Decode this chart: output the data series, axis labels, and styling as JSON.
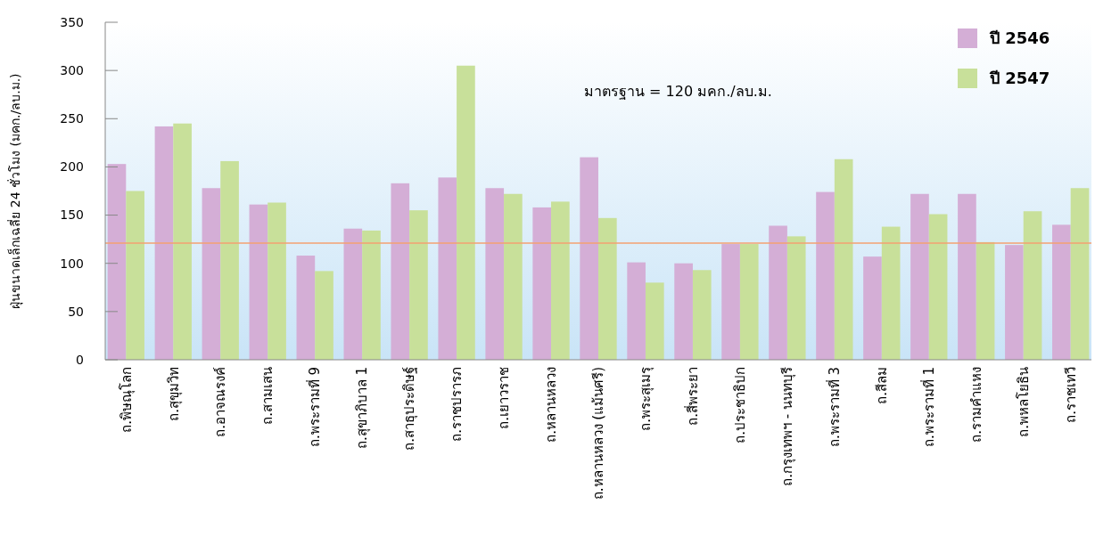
{
  "chart_data": {
    "type": "bar",
    "ylabel": "ฝุ่นขนาดเล็กเฉลี่ย 24 ชั่วโมง (มคก./ลบ.ม.)",
    "categories": [
      "ถ.พิษณุโลก",
      "ถ.สุขุมวิท",
      "ถ.อาจณรงค์",
      "ถ.สามเสน",
      "ถ.พระรามที่ 9",
      "ถ.สุขาภิบาล 1",
      "ถ.สาธุประดิษฐ์",
      "ถ.ราชปรารภ",
      "ถ.เยาวราช",
      "ถ.หลานหลวง",
      "ถ.หลานหลวง (แม้นศรี)",
      "ถ.พระสุเมรุ",
      "ถ.สี่พระยา",
      "ถ.ประชาธิปก",
      "ถ.กรุงเทพฯ - นนทบุรี",
      "ถ.พระรามที่ 3",
      "ถ.สีลม",
      "ถ.พระรามที่ 1",
      "ถ.รามคำแหง",
      "ถ.พหลโยธิน",
      "ถ.ราชเทวี"
    ],
    "series": [
      {
        "name": "ปี 2546",
        "color": "#d4aed6",
        "values": [
          203,
          242,
          178,
          161,
          108,
          136,
          183,
          189,
          178,
          158,
          210,
          101,
          100,
          120,
          139,
          174,
          107,
          172,
          172,
          119,
          140
        ]
      },
      {
        "name": "ปี 2547",
        "color": "#c8e09a",
        "values": [
          175,
          245,
          206,
          163,
          92,
          134,
          155,
          305,
          172,
          164,
          147,
          80,
          93,
          120,
          128,
          208,
          138,
          151,
          122,
          154,
          178
        ]
      }
    ],
    "ylim": [
      0,
      350
    ],
    "yticks": [
      0,
      50,
      100,
      150,
      200,
      250,
      300,
      350
    ],
    "ref_lines": [
      {
        "axis": "y",
        "value": 121,
        "color": "#f4a070"
      }
    ],
    "annotations": [
      "มาตรฐาน = 120 มคก./ลบ.ม."
    ],
    "legend": "top right"
  }
}
